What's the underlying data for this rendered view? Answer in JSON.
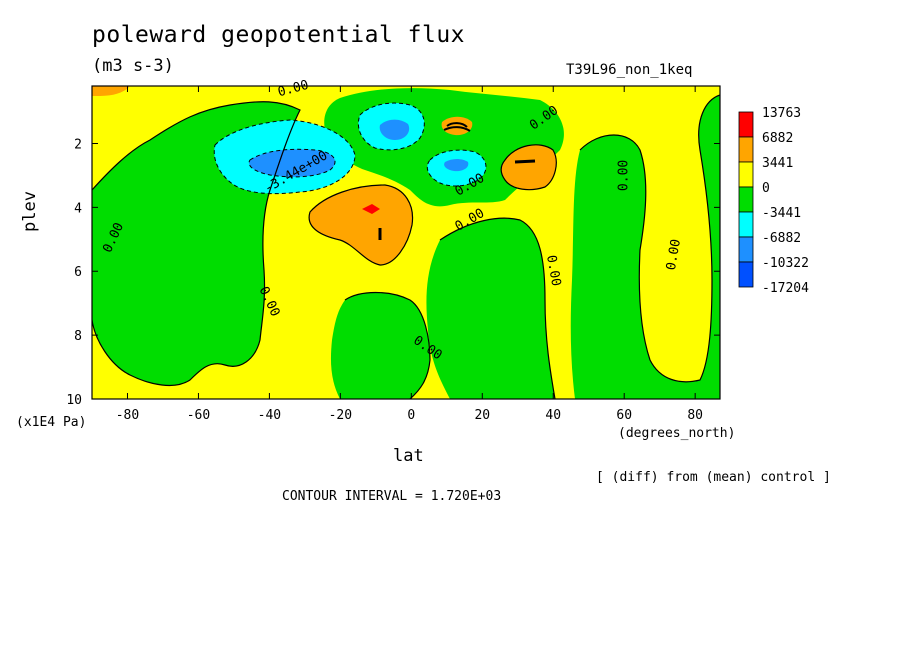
{
  "header": {
    "title": "poleward geopotential flux",
    "units": "(m3 s-3)",
    "run_name": "T39L96_non_1keq"
  },
  "footer": {
    "diff_note": "[ (diff) from (mean) control ]",
    "contour_interval": "CONTOUR INTERVAL = 1.720E+03"
  },
  "axes": {
    "x_label": "lat",
    "x_units": "(degrees_north)",
    "y_label": "plev",
    "y_units": "(x1E4 Pa)"
  },
  "colors": {
    "red": "#ff0000",
    "orange": "#ffa500",
    "yellow": "#ffff00",
    "green": "#00dd00",
    "cyan": "#00ffff",
    "blue_mid": "#1e90ff",
    "blue_dark": "#0050ff"
  },
  "chart_data": {
    "type": "heatmap",
    "title": "poleward geopotential flux",
    "xlabel": "lat",
    "ylabel": "plev",
    "xlim": [
      -90,
      87
    ],
    "ylim": [
      10,
      0.2
    ],
    "x_ticks": [
      -80,
      -60,
      -40,
      -20,
      0,
      20,
      40,
      60,
      80
    ],
    "y_ticks": [
      2,
      4,
      6,
      8,
      10
    ],
    "contour_interval": 1720,
    "colorbar": {
      "labels": [
        "13763",
        "6882",
        "3441",
        "0",
        "-3441",
        "-6882",
        "-10322",
        "-17204"
      ],
      "colors": [
        "#ff0000",
        "#ffa500",
        "#ffff00",
        "#00dd00",
        "#00ffff",
        "#1e90ff",
        "#0050ff"
      ]
    },
    "contour_labels": [
      {
        "text": "0.00",
        "x": -33,
        "y": 0.4,
        "angle": -15
      },
      {
        "text": "0.00",
        "x": 38,
        "y": 1.3,
        "angle": -35
      },
      {
        "text": "-3.44e+00",
        "x": -32,
        "y": 3.0,
        "angle": -30
      },
      {
        "text": "0.00",
        "x": 17,
        "y": 3.4,
        "angle": -30
      },
      {
        "text": "0.00",
        "x": 17,
        "y": 4.5,
        "angle": -30
      },
      {
        "text": "0.00",
        "x": -83,
        "y": 5.0,
        "angle": -65
      },
      {
        "text": "0.00",
        "x": 61,
        "y": 3.0,
        "angle": -90
      },
      {
        "text": "0.00",
        "x": 39,
        "y": 6.0,
        "angle": 80
      },
      {
        "text": "0.00",
        "x": 75,
        "y": 5.5,
        "angle": -80
      },
      {
        "text": "0.00",
        "x": -41,
        "y": 7.0,
        "angle": 65
      },
      {
        "text": "0.00",
        "x": 4,
        "y": 8.5,
        "angle": 35
      }
    ],
    "regions": [
      {
        "category": "negative (-3441 to 0)",
        "approx_center": [
          -70,
          5
        ]
      },
      {
        "category": "negative (-3441 to 0)",
        "approx_center": [
          65,
          5
        ]
      },
      {
        "category": "negative (-10322 to -3441)",
        "approx_center": [
          -40,
          2.2
        ]
      },
      {
        "category": "negative (-10322 to -3441)",
        "approx_center": [
          -5,
          1.4
        ]
      },
      {
        "category": "positive (3441 to 13763)",
        "approx_center": [
          -15,
          4.2
        ]
      },
      {
        "category": "positive (3441 to 13763)",
        "approx_center": [
          35,
          2.5
        ]
      },
      {
        "category": "positive (above 13763)",
        "approx_center": [
          -11,
          4.0
        ]
      }
    ]
  }
}
